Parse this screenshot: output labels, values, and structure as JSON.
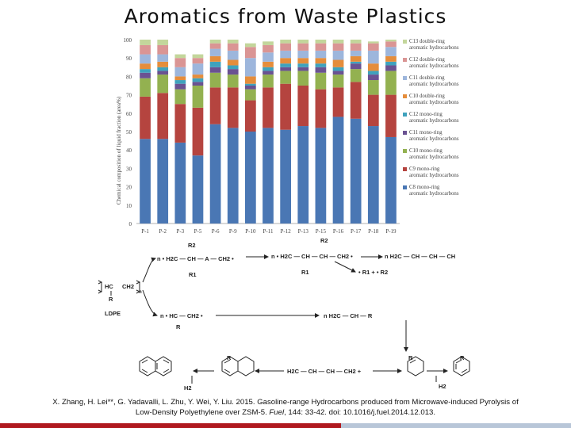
{
  "title": "Aromatics from Waste Plastics",
  "chart_data": {
    "type": "bar",
    "stacked": true,
    "ylabel": "Chemical composition of liquid fraction (area%)",
    "ylim": [
      0,
      100
    ],
    "yticks": [
      0,
      10,
      20,
      30,
      40,
      50,
      60,
      70,
      80,
      90,
      100
    ],
    "legend_position": "right",
    "categories": [
      "P-1",
      "P-2",
      "P-3",
      "P-5",
      "P-6",
      "P-9",
      "P-10",
      "P-11",
      "P-12",
      "P-13",
      "P-15",
      "P-16",
      "P-17",
      "P-18",
      "P-19"
    ],
    "series": [
      {
        "name": "C8 mono-ring aromatic hydrocarbons",
        "color": "#4a77b4",
        "values": [
          46,
          46,
          44,
          37,
          54,
          52,
          50,
          52,
          51,
          53,
          52,
          58,
          57,
          53,
          47
        ]
      },
      {
        "name": "C9 mono-ring aromatic hydrocarbons",
        "color": "#b5443f",
        "values": [
          23,
          25,
          21,
          26,
          20,
          22,
          17,
          22,
          25,
          22,
          21,
          16,
          20,
          17,
          23
        ]
      },
      {
        "name": "C10 mono-ring aromatic hydrocarbons",
        "color": "#93b150",
        "values": [
          10,
          10,
          8,
          12,
          8,
          7,
          6,
          7,
          7,
          8,
          9,
          7,
          7,
          8,
          13
        ]
      },
      {
        "name": "C11 mono-ring aromatic hydrocarbons",
        "color": "#6a5292",
        "values": [
          3,
          2,
          3,
          2,
          3,
          3,
          2,
          2,
          2,
          2,
          3,
          2,
          3,
          3,
          3
        ]
      },
      {
        "name": "C12 mono-ring aromatic hydrocarbons",
        "color": "#3fa2bd",
        "values": [
          2,
          2,
          2,
          2,
          3,
          2,
          1,
          2,
          2,
          2,
          2,
          2,
          1,
          2,
          2
        ]
      },
      {
        "name": "C10 double-ring aromatic hydrocarbons",
        "color": "#e58d3b",
        "values": [
          3,
          3,
          2,
          2,
          3,
          3,
          4,
          3,
          3,
          3,
          3,
          4,
          3,
          4,
          3
        ]
      },
      {
        "name": "C11 double-ring aromatic hydrocarbons",
        "color": "#9db6dc",
        "values": [
          5,
          4,
          5,
          6,
          4,
          5,
          10,
          5,
          4,
          4,
          4,
          5,
          3,
          7,
          5
        ]
      },
      {
        "name": "C12 double-ring aromatic hydrocarbons",
        "color": "#da9594",
        "values": [
          5,
          5,
          5,
          3,
          3,
          4,
          6,
          4,
          4,
          4,
          4,
          4,
          4,
          4,
          3
        ]
      },
      {
        "name": "C13 double-ring aromatic hydrocarbons",
        "color": "#c3d69b",
        "values": [
          3,
          3,
          2,
          2,
          2,
          2,
          2,
          2,
          2,
          2,
          2,
          2,
          2,
          1,
          1
        ]
      }
    ]
  },
  "scheme": {
    "labels": {
      "r2_a": "R2",
      "n_h2c_ch_a_ch2": "n • H2C — CH — A — CH2 •",
      "r1_a": "R1",
      "r2_b": "R2",
      "n_h2c_ch_ch_ch2": "n • H2C — CH — CH — CH2 •",
      "r1_b": "R1",
      "alkene_top": "n H2C — CH — CH — CH",
      "radicals": "• R1 + • R2",
      "hc": "HC",
      "ch2_poly": "CH2",
      "r_poly": "R",
      "n_sub": "n",
      "ldpe": "LDPE",
      "n_hc_ch2": "n • HC — CH2 •",
      "r_mid": "R",
      "alkene_mid": "n H2C — CH — R",
      "diene_bottom": "H2C — CH — CH — CH2 +",
      "r_cyclo": "R",
      "r_cyclo2": "R",
      "r_arom": "R",
      "h2_left": "H2",
      "h2_right": "H2"
    }
  },
  "citation": {
    "line1": "X. Zhang, H. Lei**, G. Yadavalli, L. Zhu, Y. Wei, Y. Liu. 2015. Gasoline-range Hydrocarbons produced from Microwave-induced Pyrolysis of",
    "line2_pre": "Low-Density Polyethylene over ZSM-5. ",
    "journal": "Fuel",
    "line2_post": ", 144: 33-42. doi: 10.1016/j.fuel.2014.12.013."
  }
}
